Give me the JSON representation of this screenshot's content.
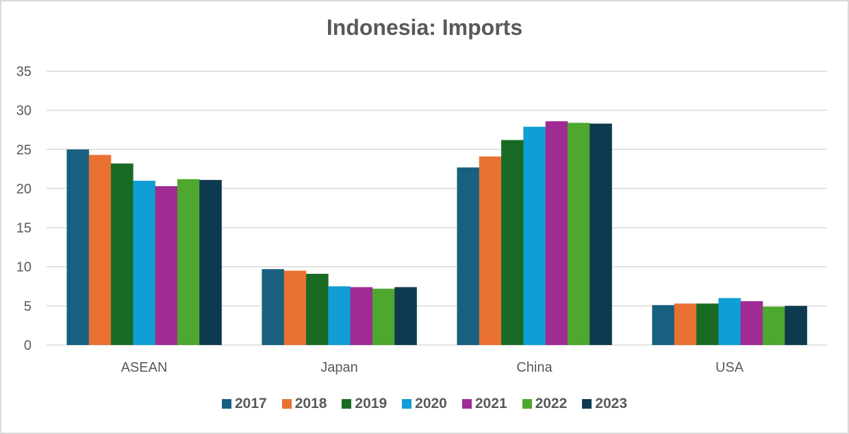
{
  "chart_data": {
    "type": "bar",
    "title": "Indonesia: Imports",
    "xlabel": "",
    "ylabel": "",
    "categories": [
      "ASEAN",
      "Japan",
      "China",
      "USA"
    ],
    "series": [
      {
        "name": "2017",
        "color": "#17607f",
        "values": [
          25.0,
          9.7,
          22.7,
          5.1
        ]
      },
      {
        "name": "2018",
        "color": "#e97132",
        "values": [
          24.3,
          9.5,
          24.1,
          5.3
        ]
      },
      {
        "name": "2019",
        "color": "#196b24",
        "values": [
          23.2,
          9.1,
          26.2,
          5.3
        ]
      },
      {
        "name": "2020",
        "color": "#0f9ed5",
        "values": [
          21.0,
          7.5,
          27.9,
          6.0
        ]
      },
      {
        "name": "2021",
        "color": "#a02b93",
        "values": [
          20.3,
          7.4,
          28.6,
          5.6
        ]
      },
      {
        "name": "2022",
        "color": "#4ea72e",
        "values": [
          21.2,
          7.2,
          28.4,
          4.9
        ]
      },
      {
        "name": "2023",
        "color": "#0e3a50",
        "values": [
          21.1,
          7.4,
          28.3,
          5.0
        ]
      }
    ],
    "ylim": [
      0,
      35
    ],
    "yticks": [
      0,
      5,
      10,
      15,
      20,
      25,
      30,
      35
    ],
    "grid": true,
    "legend_position": "bottom"
  }
}
